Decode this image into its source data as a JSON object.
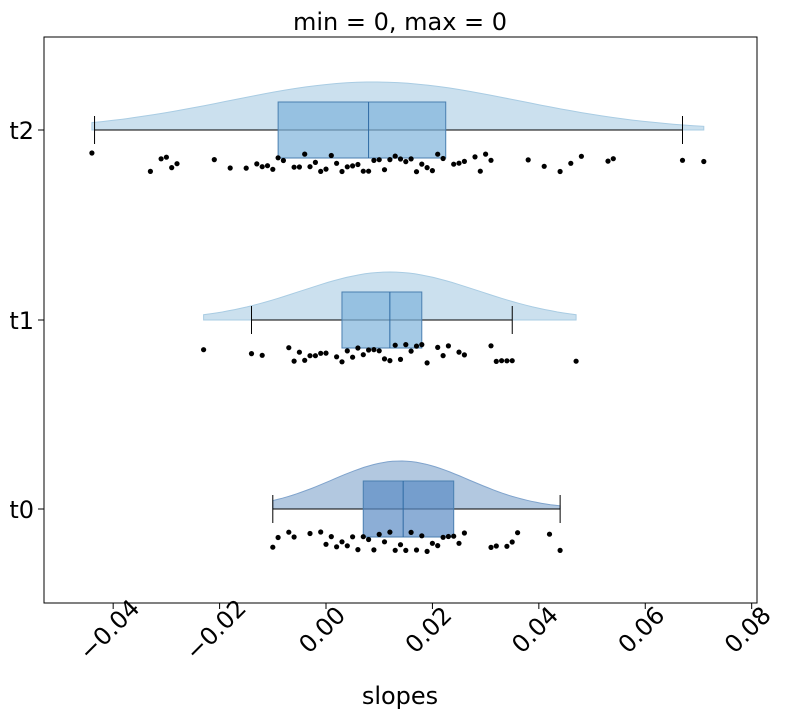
{
  "chart_data": {
    "type": "raincloud",
    "title": "min = 0, max = 0",
    "xlabel": "slopes",
    "ylabel": "",
    "xlim": [
      -0.053,
      0.081
    ],
    "xticks": [
      -0.04,
      -0.02,
      0.0,
      0.02,
      0.04,
      0.06,
      0.08
    ],
    "xtick_labels": [
      "−0.04",
      "−0.02",
      "0.00",
      "0.02",
      "0.04",
      "0.06",
      "0.08"
    ],
    "grid": false,
    "categories": [
      "t2",
      "t1",
      "t0"
    ],
    "series": [
      {
        "name": "t2",
        "color": "#a9cce3",
        "box": {
          "whisker_low": -0.0435,
          "q1": -0.009,
          "median": 0.008,
          "q3": 0.0225,
          "whisker_high": 0.067
        },
        "density_range": [
          -0.044,
          0.071
        ],
        "density_peak": 0.009,
        "points": [
          -0.044,
          -0.033,
          -0.031,
          -0.03,
          -0.029,
          -0.028,
          -0.021,
          -0.018,
          -0.015,
          -0.013,
          -0.012,
          -0.011,
          -0.01,
          -0.009,
          -0.008,
          -0.006,
          -0.005,
          -0.004,
          -0.003,
          -0.002,
          -0.001,
          0.0,
          0.001,
          0.002,
          0.003,
          0.004,
          0.005,
          0.006,
          0.007,
          0.008,
          0.009,
          0.01,
          0.011,
          0.012,
          0.013,
          0.014,
          0.015,
          0.016,
          0.017,
          0.018,
          0.019,
          0.02,
          0.021,
          0.022,
          0.024,
          0.025,
          0.026,
          0.028,
          0.029,
          0.03,
          0.031,
          0.038,
          0.041,
          0.044,
          0.046,
          0.048,
          0.053,
          0.054,
          0.067,
          0.071
        ]
      },
      {
        "name": "t1",
        "color": "#a9cce3",
        "box": {
          "whisker_low": -0.014,
          "q1": 0.003,
          "median": 0.012,
          "q3": 0.018,
          "whisker_high": 0.035
        },
        "density_range": [
          -0.023,
          0.047
        ],
        "density_peak": 0.012,
        "points": [
          -0.023,
          -0.014,
          -0.012,
          -0.007,
          -0.006,
          -0.005,
          -0.004,
          -0.003,
          -0.002,
          -0.001,
          0.0,
          0.002,
          0.003,
          0.004,
          0.005,
          0.006,
          0.007,
          0.008,
          0.009,
          0.01,
          0.011,
          0.012,
          0.013,
          0.014,
          0.015,
          0.016,
          0.017,
          0.018,
          0.019,
          0.021,
          0.022,
          0.023,
          0.025,
          0.026,
          0.031,
          0.032,
          0.033,
          0.034,
          0.035,
          0.047
        ]
      },
      {
        "name": "t0",
        "color": "#7fa3cc",
        "box": {
          "whisker_low": -0.01,
          "q1": 0.007,
          "median": 0.0145,
          "q3": 0.024,
          "whisker_high": 0.044
        },
        "density_range": [
          -0.01,
          0.044
        ],
        "density_peak": 0.014,
        "points": [
          -0.01,
          -0.009,
          -0.007,
          -0.006,
          -0.003,
          -0.001,
          0.0,
          0.001,
          0.002,
          0.003,
          0.004,
          0.005,
          0.006,
          0.007,
          0.008,
          0.009,
          0.01,
          0.011,
          0.012,
          0.013,
          0.014,
          0.015,
          0.016,
          0.017,
          0.018,
          0.019,
          0.02,
          0.021,
          0.022,
          0.023,
          0.024,
          0.025,
          0.026,
          0.031,
          0.032,
          0.034,
          0.035,
          0.036,
          0.042,
          0.044
        ]
      }
    ]
  }
}
